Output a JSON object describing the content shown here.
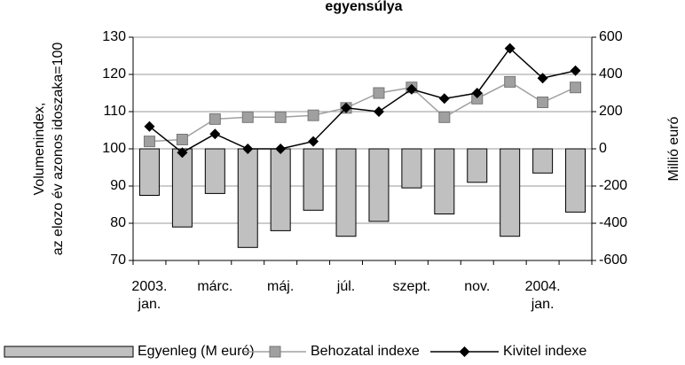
{
  "chart_data": {
    "type": "combo",
    "title": "egyensúlya",
    "y_label": [
      "Volumenindex,",
      "az elozo év azonos idoszaka=100"
    ],
    "y2_label": "Millió euró",
    "categories": [
      "2003. jan.",
      null,
      "márc.",
      null,
      "máj.",
      null,
      "júl.",
      null,
      "szept.",
      null,
      "nov.",
      null,
      "2004. jan.",
      null
    ],
    "ylim": [
      70,
      130
    ],
    "yticks": [
      70,
      80,
      90,
      100,
      110,
      120,
      130
    ],
    "y2lim": [
      -600,
      600
    ],
    "y2ticks": [
      -600,
      -400,
      -200,
      0,
      200,
      400,
      600
    ],
    "grid": true,
    "series": [
      {
        "name": "Egyenleg (M euró)",
        "type": "bar",
        "axis": "y2",
        "color": "#c0c0c0",
        "values": [
          -250,
          -420,
          -240,
          -530,
          -440,
          -330,
          -470,
          -390,
          -210,
          -350,
          -180,
          -470,
          -130,
          -340
        ]
      },
      {
        "name": "Behozatal indexe",
        "type": "line",
        "color": "#a0a0a0",
        "marker": "square",
        "values": [
          102,
          102.5,
          108,
          108.5,
          108.5,
          109,
          111,
          115,
          116.5,
          108.5,
          113.5,
          118,
          112.5,
          116.5
        ]
      },
      {
        "name": "Kivitel indexe",
        "type": "line",
        "color": "#000000",
        "marker": "diamond",
        "values": [
          106,
          99,
          104,
          100,
          100,
          102,
          111,
          110,
          116,
          113.5,
          115,
          127,
          119,
          121
        ]
      }
    ]
  }
}
